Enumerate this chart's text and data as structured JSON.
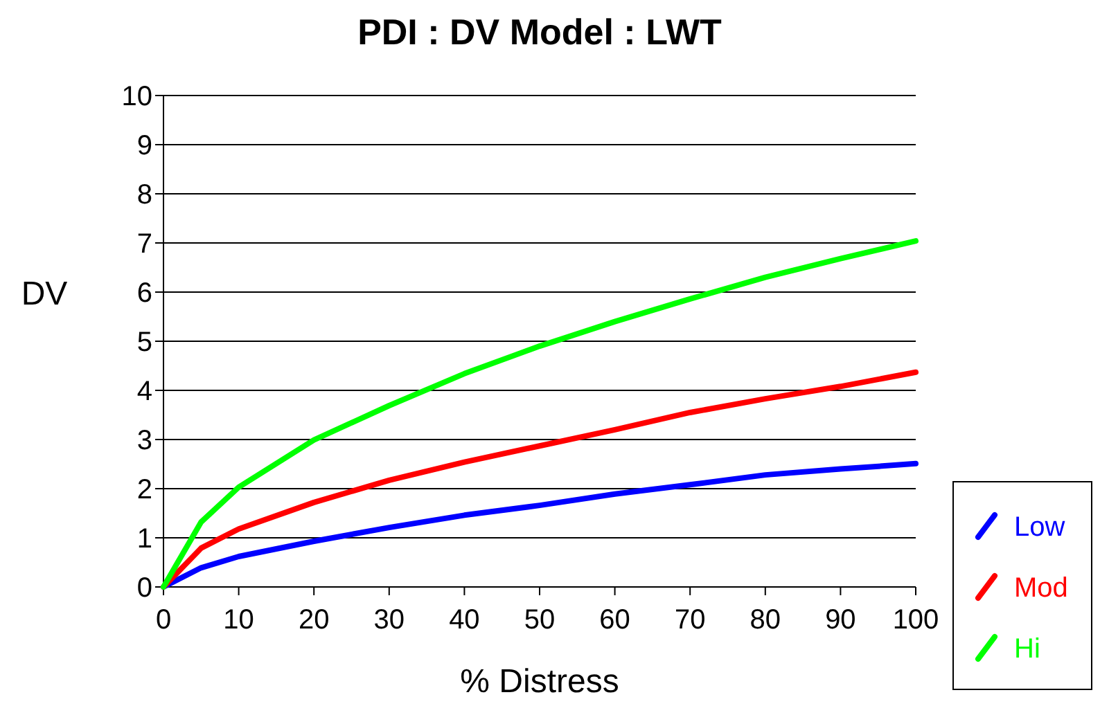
{
  "chart_data": {
    "type": "line",
    "title": "PDI : DV Model : LWT",
    "xlabel": "% Distress",
    "ylabel": "DV",
    "x": [
      0,
      5,
      10,
      20,
      30,
      40,
      50,
      60,
      70,
      80,
      90,
      100
    ],
    "series": [
      {
        "name": "Low",
        "color": "#0000ff",
        "values": [
          0,
          0.39,
          0.62,
          0.93,
          1.21,
          1.46,
          1.66,
          1.89,
          2.08,
          2.28,
          2.4,
          2.51
        ]
      },
      {
        "name": "Mod",
        "color": "#ff0000",
        "values": [
          0,
          0.79,
          1.18,
          1.72,
          2.17,
          2.54,
          2.87,
          3.2,
          3.55,
          3.83,
          4.08,
          4.37
        ]
      },
      {
        "name": "Hi",
        "color": "#00ff00",
        "values": [
          0,
          1.32,
          2.03,
          2.99,
          3.69,
          4.34,
          4.9,
          5.4,
          5.86,
          6.3,
          6.68,
          7.04
        ]
      }
    ],
    "xlim": [
      0,
      100
    ],
    "xticks": [
      0,
      10,
      20,
      30,
      40,
      50,
      60,
      70,
      80,
      90,
      100
    ],
    "ylim": [
      0,
      10
    ],
    "yticks": [
      0,
      1,
      2,
      3,
      4,
      5,
      6,
      7,
      8,
      9,
      10
    ],
    "grid": "y",
    "legend": "bottom right",
    "marker": "none",
    "line_style": "solid"
  }
}
